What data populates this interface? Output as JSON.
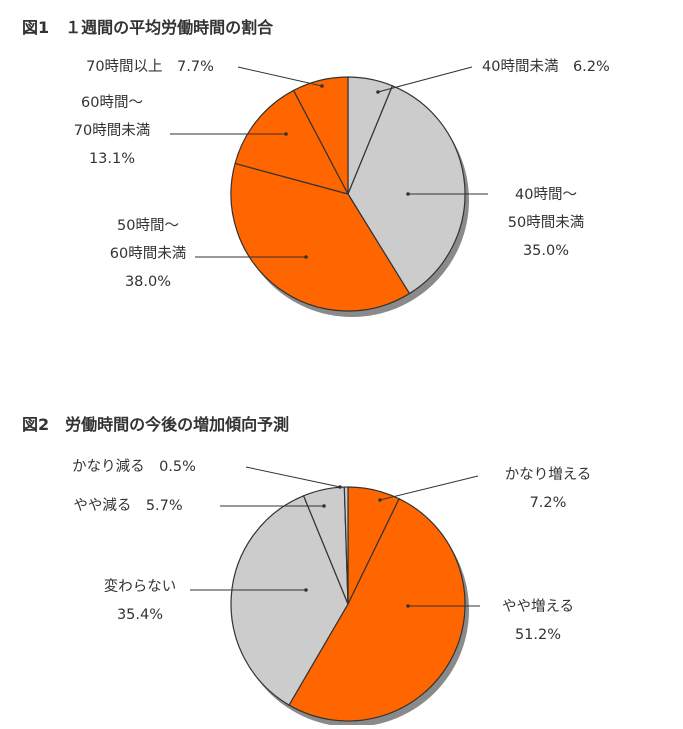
{
  "colors": {
    "orange": "#ff6600",
    "gray": "#cccccc",
    "outline": "#333333",
    "shadow": "#8a8a8a",
    "text": "#333333"
  },
  "chart_data": [
    {
      "type": "pie",
      "title": "図1　１週間の平均労働時間の割合",
      "slices": [
        {
          "label": [
            "40時間未満　6.2%"
          ],
          "value": 6.2,
          "color": "#cccccc"
        },
        {
          "label": [
            "40時間～",
            "50時間未満",
            "35.0%"
          ],
          "value": 35.0,
          "color": "#cccccc"
        },
        {
          "label": [
            "50時間～",
            "60時間未満",
            "38.0%"
          ],
          "value": 38.0,
          "color": "#ff6600"
        },
        {
          "label": [
            "60時間～",
            "70時間未満",
            "13.1%"
          ],
          "value": 13.1,
          "color": "#ff6600"
        },
        {
          "label": [
            "70時間以上　7.7%"
          ],
          "value": 7.7,
          "color": "#ff6600"
        }
      ]
    },
    {
      "type": "pie",
      "title": "図2　労働時間の今後の増加傾向予測",
      "slices": [
        {
          "label": [
            "かなり増える",
            "7.2%"
          ],
          "value": 7.2,
          "color": "#ff6600"
        },
        {
          "label": [
            "やや増える",
            "51.2%"
          ],
          "value": 51.2,
          "color": "#ff6600"
        },
        {
          "label": [
            "変わらない",
            "35.4%"
          ],
          "value": 35.4,
          "color": "#cccccc"
        },
        {
          "label": [
            "やや減る　5.7%"
          ],
          "value": 5.7,
          "color": "#cccccc"
        },
        {
          "label": [
            "かなり減る　0.5%"
          ],
          "value": 0.5,
          "color": "#cccccc"
        }
      ]
    }
  ]
}
